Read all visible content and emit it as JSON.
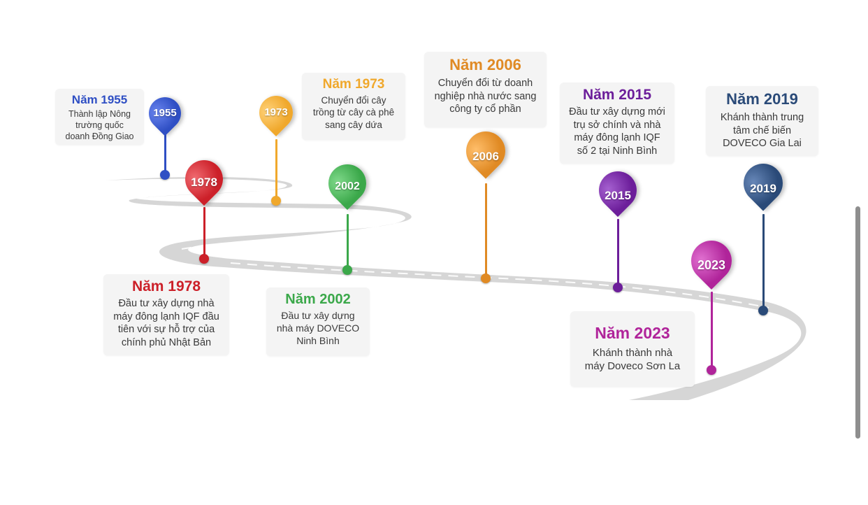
{
  "colors": {
    "c1955": "#2f4fc4",
    "c1973": "#f0a82c",
    "c1978": "#cc2029",
    "c2002": "#3ba84a",
    "c2006": "#e08a24",
    "c2015": "#6c1e9a",
    "c2019": "#2a4a78",
    "c2023": "#b0249a",
    "road": "#d2d2d2"
  },
  "milestones": [
    {
      "year": "1955",
      "color": "#2f4fc4",
      "title": "Năm 1955",
      "lines": [
        "Thành lập Nông",
        "trường quốc",
        "doanh Đồng Giao"
      ]
    },
    {
      "year": "1973",
      "color": "#f0a82c",
      "title": "Năm 1973",
      "lines": [
        "Chuyển đổi cây",
        "trồng từ cây cà phê",
        "sang cây dứa"
      ]
    },
    {
      "year": "1978",
      "color": "#cc2029",
      "title": "Năm 1978",
      "lines": [
        "Đầu tư xây dựng nhà",
        "máy đông lạnh IQF đầu",
        "tiên với sự hỗ trợ của",
        "chính phủ Nhật Bản"
      ]
    },
    {
      "year": "2002",
      "color": "#3ba84a",
      "title": "Năm 2002",
      "lines": [
        "Đầu tư xây dựng",
        "nhà máy DOVECO",
        "Ninh Bình"
      ]
    },
    {
      "year": "2006",
      "color": "#e08a24",
      "title": "Năm 2006",
      "lines": [
        "Chuyển đổi từ doanh",
        "nghiệp nhà nước sang",
        "công ty cổ phần"
      ]
    },
    {
      "year": "2015",
      "color": "#6c1e9a",
      "title": "Năm 2015",
      "lines": [
        "Đầu tư xây dựng mới",
        "trụ sở chính và nhà",
        "máy đông lạnh IQF",
        "số 2 tại Ninh Bình"
      ]
    },
    {
      "year": "2019",
      "color": "#2a4a78",
      "title": "Năm 2019",
      "lines": [
        "Khánh thành trung",
        "tâm chế biến",
        "DOVECO Gia Lai"
      ]
    },
    {
      "year": "2023",
      "color": "#b0249a",
      "title": "Năm 2023",
      "lines": [
        "Khánh thành nhà",
        "máy Doveco Sơn La"
      ]
    }
  ]
}
